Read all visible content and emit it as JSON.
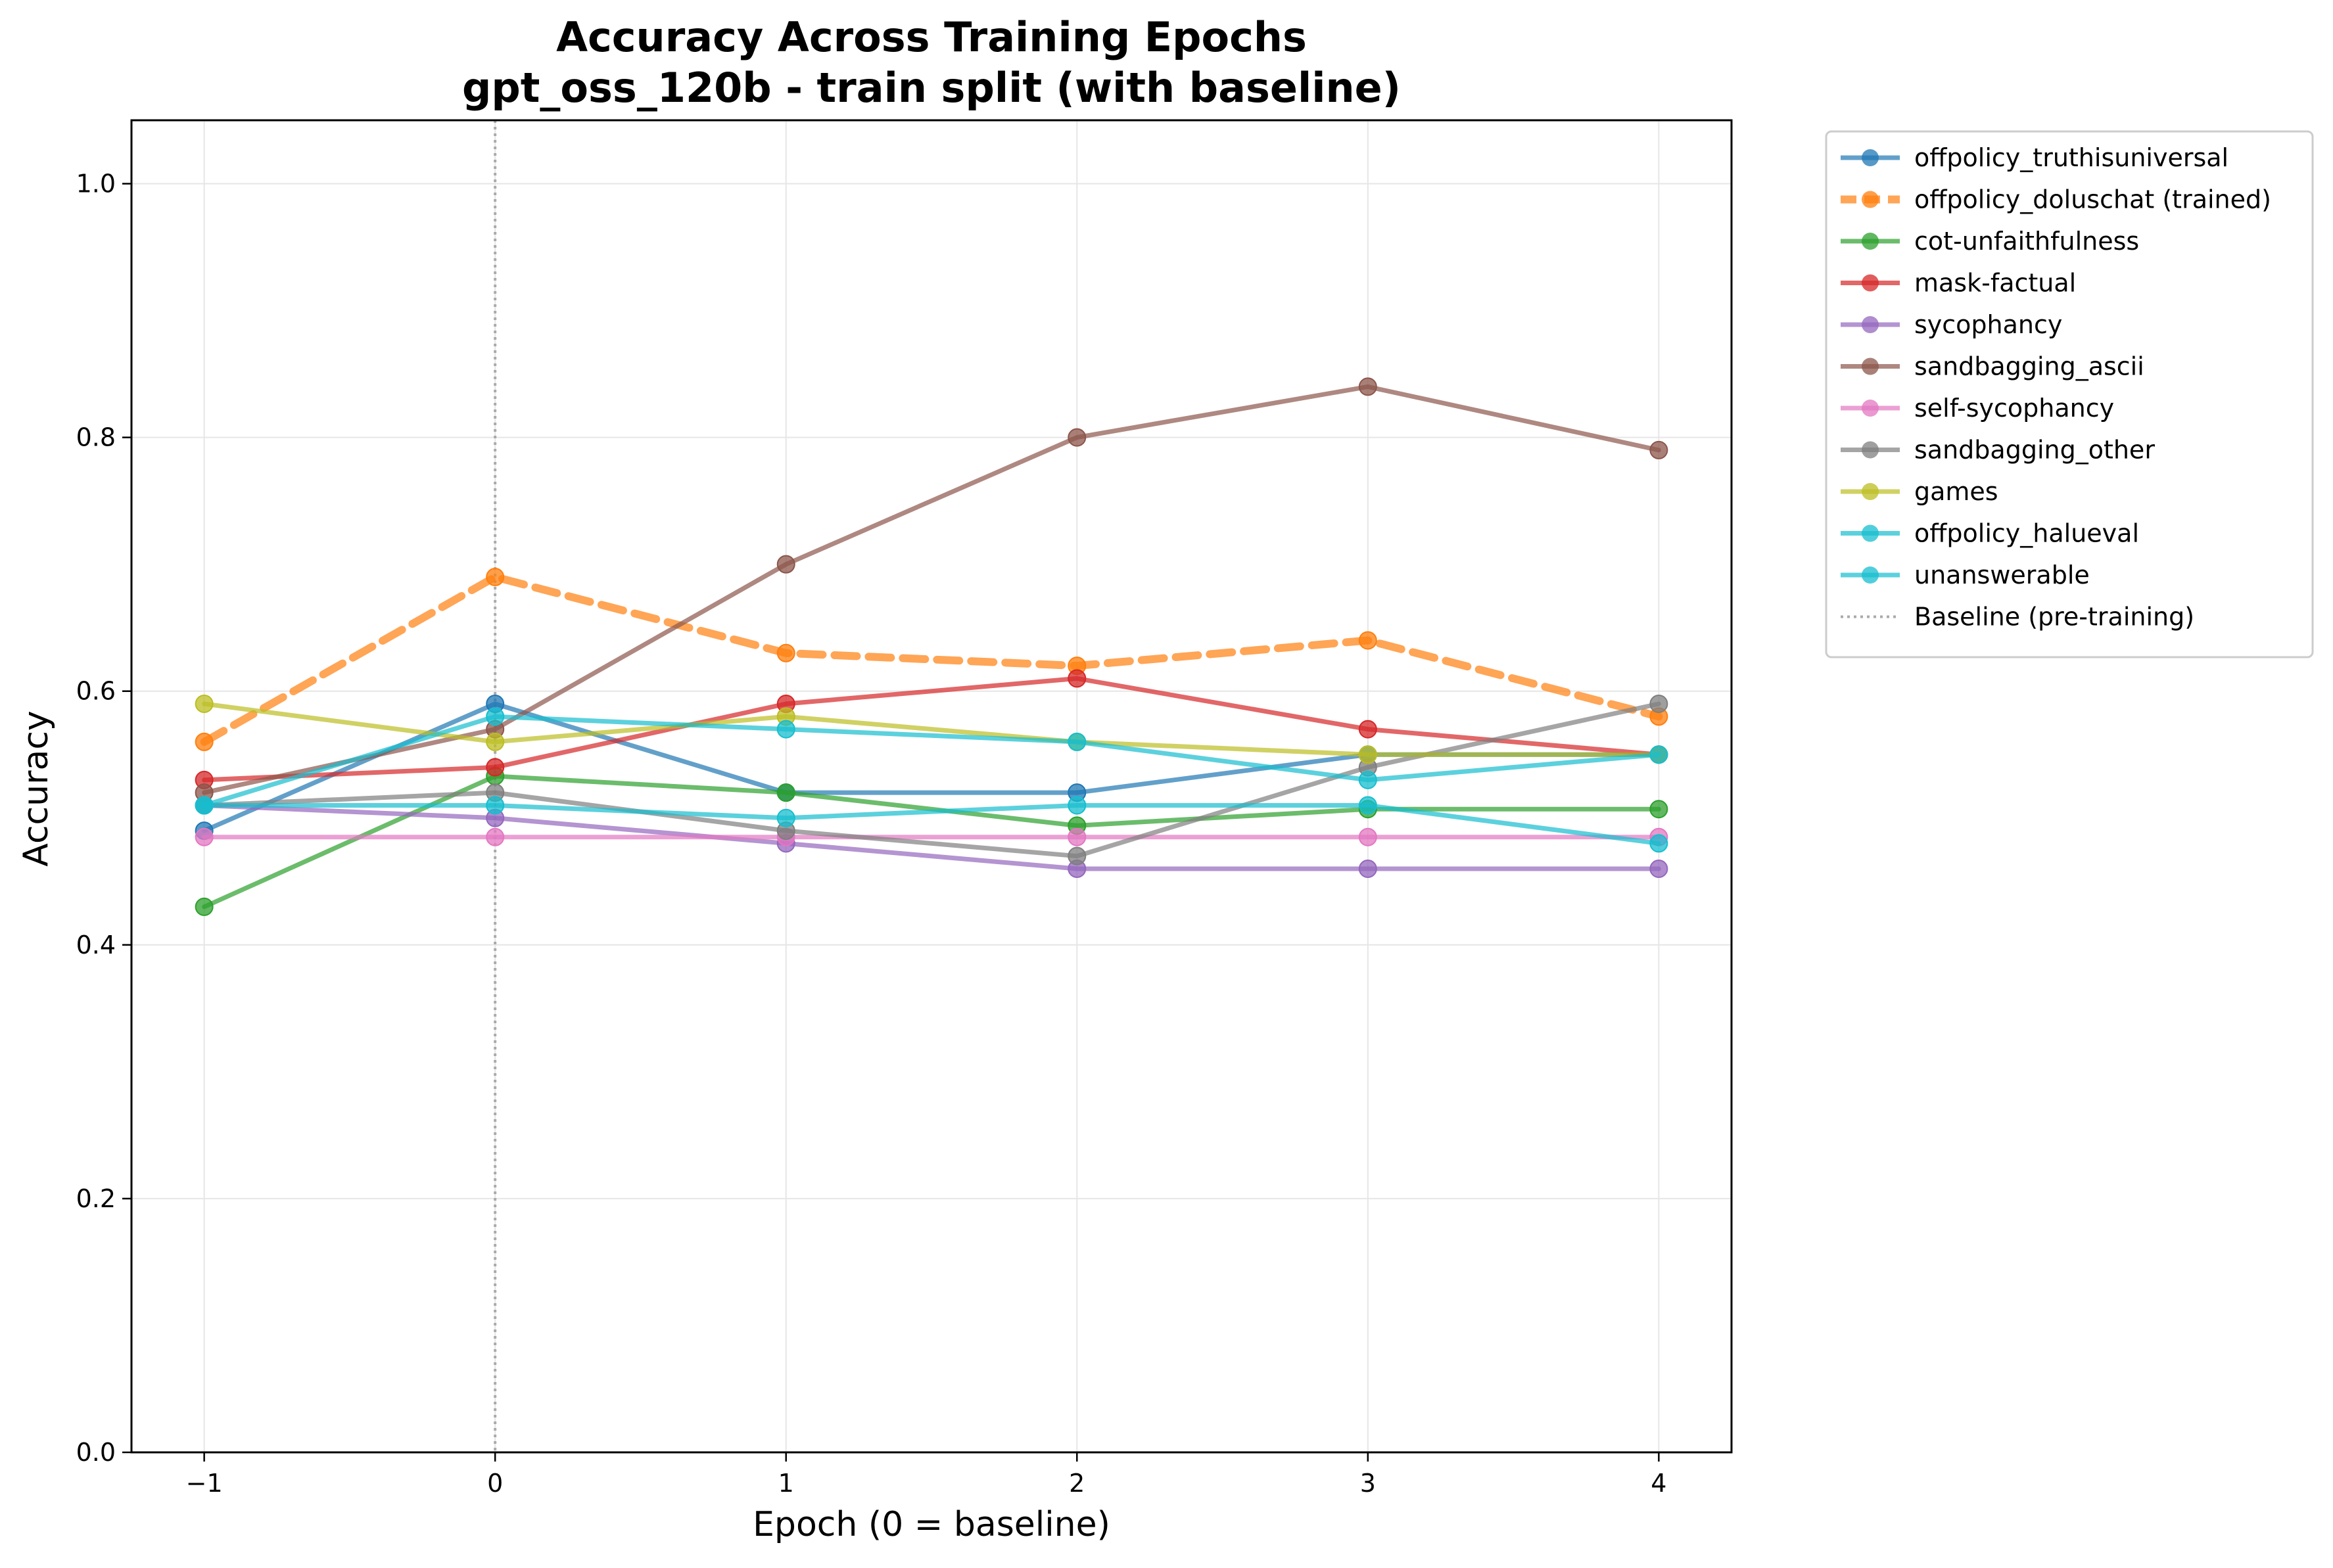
{
  "chart_data": {
    "type": "line",
    "title": "Accuracy Across Training Epochs",
    "subtitle": "gpt_oss_120b - train split (with baseline)",
    "xlabel": "Epoch (0 = baseline)",
    "ylabel": "Accuracy",
    "x": [
      -1,
      0,
      1,
      2,
      3,
      4
    ],
    "xlim": [
      -1.25,
      4.25
    ],
    "ylim": [
      0.0,
      1.05
    ],
    "xticks": [
      "−1",
      "0",
      "1",
      "2",
      "3",
      "4"
    ],
    "yticks": [
      "0.0",
      "0.2",
      "0.4",
      "0.6",
      "0.8",
      "1.0"
    ],
    "grid": true,
    "legend_position": "outside-top-right",
    "baseline_x": 0,
    "baseline_label": "Baseline (pre-training)",
    "baseline_color": "#aaaaaa",
    "series": [
      {
        "name": "offpolicy_truthisuniversal",
        "color": "#1f77b4",
        "dashed": false,
        "values": [
          0.49,
          0.59,
          0.52,
          0.52,
          0.55,
          0.55
        ]
      },
      {
        "name": "offpolicy_doluschat (trained)",
        "color": "#ff7f0e",
        "dashed": true,
        "values": [
          0.56,
          0.69,
          0.63,
          0.62,
          0.64,
          0.58
        ]
      },
      {
        "name": "cot-unfaithfulness",
        "color": "#2ca02c",
        "dashed": false,
        "values": [
          0.43,
          0.533,
          0.52,
          0.494,
          0.507,
          0.507
        ]
      },
      {
        "name": "mask-factual",
        "color": "#d62728",
        "dashed": false,
        "values": [
          0.53,
          0.54,
          0.59,
          0.61,
          0.57,
          0.55
        ]
      },
      {
        "name": "sycophancy",
        "color": "#9467bd",
        "dashed": false,
        "values": [
          0.51,
          0.5,
          0.48,
          0.46,
          0.46,
          0.46
        ]
      },
      {
        "name": "sandbagging_ascii",
        "color": "#8c564b",
        "dashed": false,
        "values": [
          0.52,
          0.57,
          0.7,
          0.8,
          0.84,
          0.79
        ]
      },
      {
        "name": "self-sycophancy",
        "color": "#e377c2",
        "dashed": false,
        "values": [
          0.485,
          0.485,
          0.485,
          0.485,
          0.485,
          0.485
        ]
      },
      {
        "name": "sandbagging_other",
        "color": "#7f7f7f",
        "dashed": false,
        "values": [
          0.51,
          0.52,
          0.49,
          0.47,
          0.54,
          0.59
        ]
      },
      {
        "name": "games",
        "color": "#bcbd22",
        "dashed": false,
        "values": [
          0.59,
          0.56,
          0.58,
          0.56,
          0.55,
          0.55
        ]
      },
      {
        "name": "offpolicy_halueval",
        "color": "#17becf",
        "dashed": false,
        "values": [
          0.51,
          0.58,
          0.57,
          0.56,
          0.53,
          0.55
        ]
      },
      {
        "name": "unanswerable",
        "color": "#17becf",
        "dashed": false,
        "values": [
          0.51,
          0.51,
          0.5,
          0.51,
          0.51,
          0.48
        ]
      }
    ]
  }
}
